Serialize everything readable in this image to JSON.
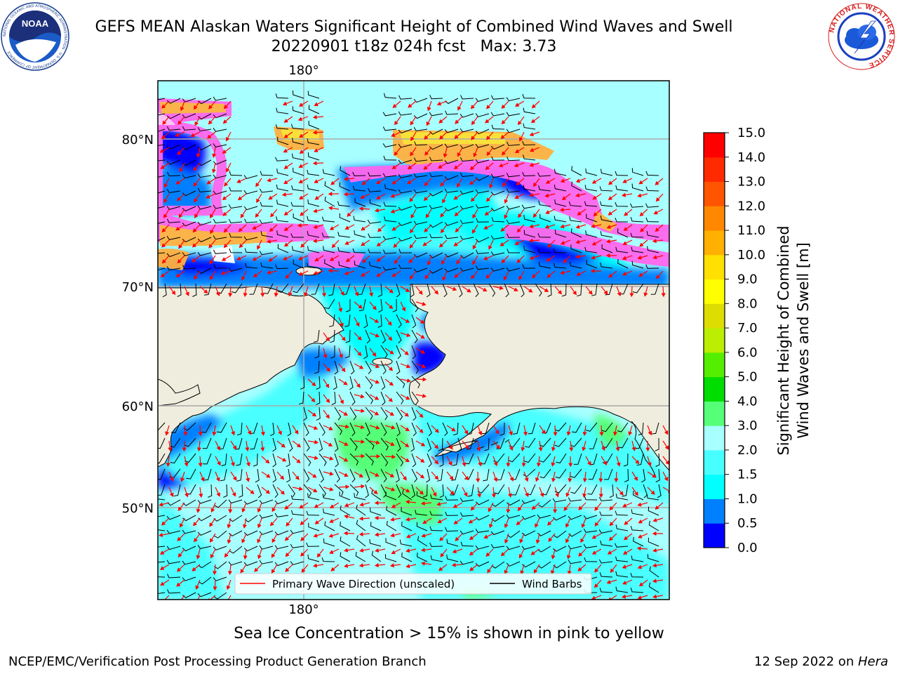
{
  "header": {
    "title": "GEFS MEAN Alaskan Waters Significant Height of Combined Wind Waves and Swell",
    "subtitle": "20220901 t18z 024h fcst   Max: 3.73"
  },
  "logos": {
    "left": {
      "text": "NOAA",
      "ring": "NATIONAL OCEANIC AND ATMOSPHERIC ADMINISTRATION · U.S. DEPARTMENT OF COMMERCE"
    },
    "right": {
      "ring": "NATIONAL WEATHER SERVICE"
    }
  },
  "map": {
    "lat_labels": [
      "80°N",
      "70°N",
      "60°N",
      "50°N"
    ],
    "lon_label_top": "180°",
    "lon_label_bottom": "180°",
    "legend": {
      "wave_label": "Primary Wave Direction (unscaled)",
      "barb_label": "Wind Barbs",
      "wave_color": "#ff0000",
      "barb_color": "#000000"
    },
    "colors": {
      "land": "#efedde",
      "ice_pink": "#ff66ee",
      "ice_orange": "#ffb040",
      "ice_yellow": "#ffe030"
    }
  },
  "colorbar": {
    "title_line1": "Significant Height of Combined",
    "title_line2": "Wind Waves and Swell [m]",
    "ticks": [
      "0.0",
      "0.5",
      "1.0",
      "1.5",
      "2.0",
      "3.0",
      "4.0",
      "5.0",
      "6.0",
      "7.0",
      "8.0",
      "9.0",
      "10.0",
      "11.0",
      "12.0",
      "13.0",
      "14.0",
      "15.0"
    ],
    "colors": [
      "#0000ff",
      "#0080ff",
      "#00ffff",
      "#48ffff",
      "#a8ffff",
      "#55ff77",
      "#00dd00",
      "#55ee00",
      "#bbee00",
      "#dddd00",
      "#ffff00",
      "#ffe000",
      "#ffb000",
      "#ff8800",
      "#ff5500",
      "#ff2a00",
      "#ff0000"
    ]
  },
  "caption": "Sea Ice Concentration > 15% is shown in pink to yellow",
  "footer": {
    "left": "NCEP/EMC/Verification Post Processing Product Generation Branch",
    "right_date": "12 Sep 2022 on ",
    "right_host": "Hera"
  }
}
